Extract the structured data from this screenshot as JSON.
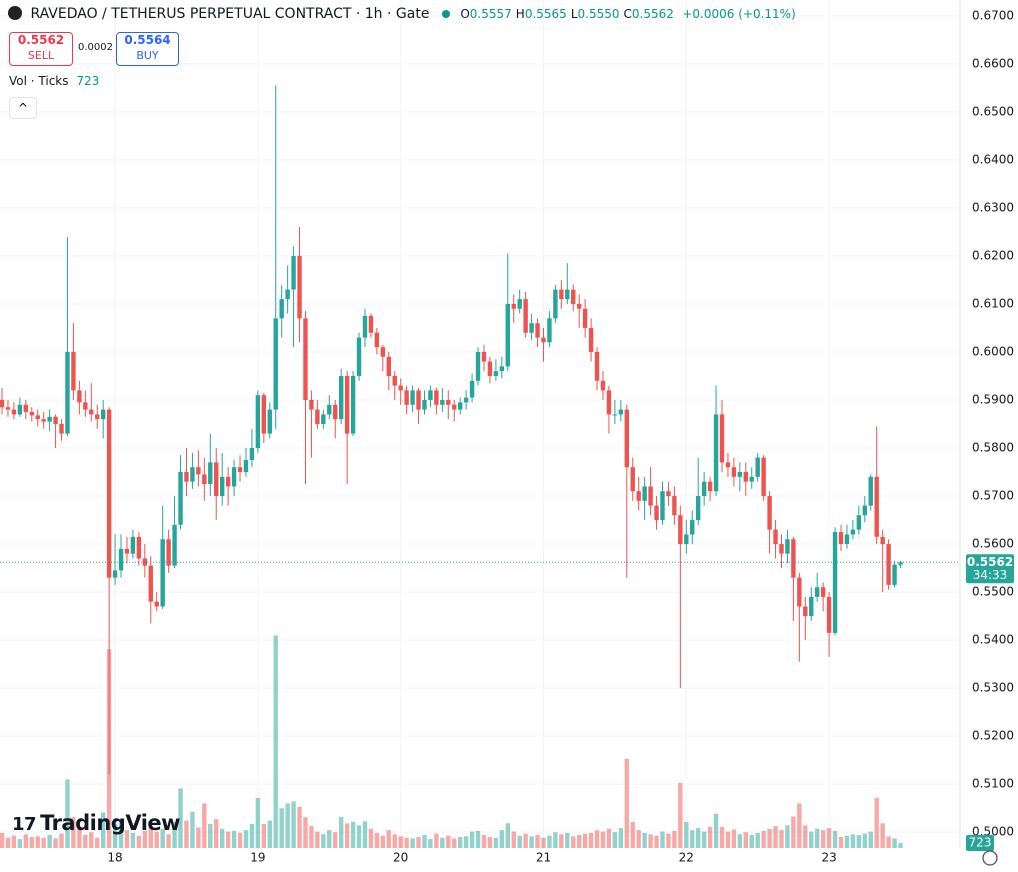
{
  "chart_data": {
    "type": "candlestick",
    "title": "RAVEDAO / TETHERUS PERPETUAL CONTRACT · 1h · Gate",
    "legend": [
      {
        "label": "O",
        "value": "0.5557"
      },
      {
        "label": "H",
        "value": "0.5565"
      },
      {
        "label": "L",
        "value": "0.5550"
      },
      {
        "label": "C",
        "value": "0.5562"
      }
    ],
    "change": "+0.0006 (+0.11%)",
    "volume_title": "Vol · Ticks",
    "colors": {
      "up": "#26a69a",
      "down": "#ef5350"
    },
    "ylim": [
      0.4967,
      0.6733
    ],
    "yticks": [
      {
        "value": 0.5,
        "label": "0.5000"
      },
      {
        "value": 0.51,
        "label": "0.5100"
      },
      {
        "value": 0.52,
        "label": "0.5200"
      },
      {
        "value": 0.53,
        "label": "0.5300"
      },
      {
        "value": 0.54,
        "label": "0.5400"
      },
      {
        "value": 0.55,
        "label": "0.5500"
      },
      {
        "value": 0.56,
        "label": "0.5600"
      },
      {
        "value": 0.57,
        "label": "0.5700"
      },
      {
        "value": 0.58,
        "label": "0.5800"
      },
      {
        "value": 0.59,
        "label": "0.5900"
      },
      {
        "value": 0.6,
        "label": "0.6000"
      },
      {
        "value": 0.61,
        "label": "0.6100"
      },
      {
        "value": 0.62,
        "label": "0.6200"
      },
      {
        "value": 0.63,
        "label": "0.6300"
      },
      {
        "value": 0.64,
        "label": "0.6400"
      },
      {
        "value": 0.65,
        "label": "0.6500"
      },
      {
        "value": 0.66,
        "label": "0.6600"
      },
      {
        "value": 0.67,
        "label": "0.6700"
      }
    ],
    "xlim": [
      -0.34,
      161
    ],
    "xticks": [
      {
        "value": 19,
        "label": "18"
      },
      {
        "value": 43,
        "label": "19"
      },
      {
        "value": 67,
        "label": "20"
      },
      {
        "value": 91,
        "label": "21"
      },
      {
        "value": 115,
        "label": "22"
      },
      {
        "value": 139,
        "label": "23"
      }
    ],
    "grid": true,
    "open": [
      0.59,
      0.5885,
      0.588,
      0.587,
      0.589,
      0.5875,
      0.5868,
      0.586,
      0.5855,
      0.5865,
      0.585,
      0.583,
      0.6,
      0.592,
      0.5895,
      0.588,
      0.587,
      0.586,
      0.588,
      0.553,
      0.5545,
      0.559,
      0.558,
      0.5615,
      0.557,
      0.5555,
      0.548,
      0.547,
      0.561,
      0.5555,
      0.564,
      0.575,
      0.573,
      0.576,
      0.5745,
      0.5725,
      0.577,
      0.57,
      0.574,
      0.572,
      0.576,
      0.575,
      0.5775,
      0.58,
      0.591,
      0.583,
      0.588,
      0.607,
      0.611,
      0.613,
      0.62,
      0.607,
      0.59,
      0.588,
      0.585,
      0.587,
      0.589,
      0.586,
      0.595,
      0.583,
      0.595,
      0.603,
      0.6075,
      0.604,
      0.601,
      0.599,
      0.595,
      0.593,
      0.592,
      0.589,
      0.592,
      0.588,
      0.59,
      0.592,
      0.589,
      0.59,
      0.589,
      0.588,
      0.5895,
      0.5905,
      0.594,
      0.6,
      0.598,
      0.595,
      0.596,
      0.597,
      0.61,
      0.609,
      0.611,
      0.604,
      0.606,
      0.603,
      0.602,
      0.607,
      0.613,
      0.611,
      0.613,
      0.61,
      0.609,
      0.605,
      0.6,
      0.594,
      0.592,
      0.587,
      0.587,
      0.588,
      0.576,
      0.571,
      0.569,
      0.572,
      0.568,
      0.565,
      0.571,
      0.57,
      0.566,
      0.56,
      0.562,
      0.565,
      0.57,
      0.573,
      0.571,
      0.587,
      0.577,
      0.576,
      0.574,
      0.575,
      0.573,
      0.574,
      0.578,
      0.57,
      0.563,
      0.56,
      0.558,
      0.561,
      0.553,
      0.547,
      0.545,
      0.549,
      0.551,
      0.549,
      0.5415,
      0.5625,
      0.56,
      0.562,
      0.563,
      0.566,
      0.568,
      0.574,
      0.5615,
      0.56,
      0.5515,
      0.5557
    ],
    "high": [
      0.5925,
      0.59,
      0.5895,
      0.5905,
      0.59,
      0.5885,
      0.588,
      0.5875,
      0.588,
      0.587,
      0.586,
      0.624,
      0.606,
      0.594,
      0.592,
      0.5935,
      0.589,
      0.59,
      0.5885,
      0.562,
      0.562,
      0.5615,
      0.563,
      0.5625,
      0.56,
      0.5575,
      0.55,
      0.568,
      0.563,
      0.57,
      0.5785,
      0.58,
      0.579,
      0.5795,
      0.578,
      0.583,
      0.58,
      0.579,
      0.576,
      0.5775,
      0.5785,
      0.58,
      0.584,
      0.592,
      0.5915,
      0.5895,
      0.6555,
      0.614,
      0.618,
      0.622,
      0.626,
      0.6085,
      0.592,
      0.59,
      0.588,
      0.591,
      0.59,
      0.5965,
      0.596,
      0.596,
      0.604,
      0.609,
      0.608,
      0.605,
      0.6015,
      0.6,
      0.596,
      0.5945,
      0.593,
      0.593,
      0.5925,
      0.592,
      0.593,
      0.5925,
      0.5925,
      0.592,
      0.59,
      0.5905,
      0.592,
      0.5955,
      0.601,
      0.6015,
      0.599,
      0.5985,
      0.599,
      0.6205,
      0.612,
      0.613,
      0.6125,
      0.608,
      0.607,
      0.605,
      0.6085,
      0.614,
      0.615,
      0.6185,
      0.614,
      0.612,
      0.611,
      0.607,
      0.601,
      0.596,
      0.593,
      0.59,
      0.59,
      0.589,
      0.578,
      0.574,
      0.574,
      0.576,
      0.57,
      0.573,
      0.573,
      0.572,
      0.568,
      0.565,
      0.567,
      0.578,
      0.575,
      0.574,
      0.593,
      0.59,
      0.579,
      0.578,
      0.577,
      0.577,
      0.576,
      0.579,
      0.5785,
      0.571,
      0.565,
      0.562,
      0.563,
      0.5615,
      0.554,
      0.549,
      0.551,
      0.554,
      0.552,
      0.55,
      0.5635,
      0.564,
      0.564,
      0.565,
      0.568,
      0.57,
      0.5745,
      0.5845,
      0.563,
      0.561,
      0.5565,
      0.5565
    ],
    "low": [
      0.587,
      0.5865,
      0.586,
      0.5865,
      0.586,
      0.5855,
      0.5845,
      0.584,
      0.5835,
      0.58,
      0.5815,
      0.5825,
      0.59,
      0.587,
      0.5865,
      0.5855,
      0.584,
      0.582,
      0.512,
      0.5515,
      0.553,
      0.556,
      0.557,
      0.5555,
      0.553,
      0.5435,
      0.546,
      0.5465,
      0.554,
      0.555,
      0.563,
      0.57,
      0.5715,
      0.572,
      0.569,
      0.57,
      0.565,
      0.568,
      0.568,
      0.57,
      0.573,
      0.574,
      0.576,
      0.579,
      0.581,
      0.582,
      0.584,
      0.603,
      0.608,
      0.601,
      0.602,
      0.5725,
      0.578,
      0.584,
      0.584,
      0.586,
      0.582,
      0.585,
      0.5725,
      0.5825,
      0.594,
      0.601,
      0.603,
      0.5995,
      0.596,
      0.592,
      0.59,
      0.589,
      0.587,
      0.5875,
      0.585,
      0.587,
      0.5885,
      0.587,
      0.5875,
      0.586,
      0.5855,
      0.587,
      0.588,
      0.5895,
      0.593,
      0.596,
      0.5935,
      0.594,
      0.5945,
      0.596,
      0.606,
      0.608,
      0.603,
      0.6025,
      0.601,
      0.598,
      0.601,
      0.606,
      0.609,
      0.61,
      0.6085,
      0.605,
      0.603,
      0.598,
      0.592,
      0.59,
      0.583,
      0.585,
      0.5855,
      0.553,
      0.569,
      0.567,
      0.565,
      0.566,
      0.563,
      0.564,
      0.568,
      0.564,
      0.53,
      0.558,
      0.56,
      0.564,
      0.568,
      0.569,
      0.57,
      0.575,
      0.574,
      0.572,
      0.571,
      0.57,
      0.5715,
      0.573,
      0.569,
      0.558,
      0.557,
      0.555,
      0.556,
      0.544,
      0.5355,
      0.54,
      0.544,
      0.548,
      0.546,
      0.5365,
      0.541,
      0.5585,
      0.559,
      0.561,
      0.562,
      0.5645,
      0.567,
      0.56,
      0.55,
      0.5505,
      0.551,
      0.555
    ],
    "close": [
      0.5885,
      0.588,
      0.587,
      0.589,
      0.5875,
      0.5868,
      0.586,
      0.5855,
      0.5865,
      0.585,
      0.583,
      0.6,
      0.592,
      0.5895,
      0.588,
      0.587,
      0.586,
      0.588,
      0.553,
      0.5545,
      0.559,
      0.558,
      0.5615,
      0.557,
      0.5555,
      0.548,
      0.547,
      0.561,
      0.5555,
      0.564,
      0.575,
      0.573,
      0.576,
      0.5745,
      0.5725,
      0.577,
      0.57,
      0.574,
      0.572,
      0.576,
      0.575,
      0.5775,
      0.58,
      0.591,
      0.583,
      0.588,
      0.607,
      0.611,
      0.613,
      0.62,
      0.607,
      0.59,
      0.588,
      0.585,
      0.587,
      0.589,
      0.586,
      0.595,
      0.583,
      0.595,
      0.603,
      0.6075,
      0.604,
      0.601,
      0.599,
      0.595,
      0.593,
      0.592,
      0.589,
      0.592,
      0.588,
      0.59,
      0.592,
      0.589,
      0.59,
      0.589,
      0.588,
      0.5895,
      0.5905,
      0.594,
      0.6,
      0.598,
      0.595,
      0.596,
      0.597,
      0.61,
      0.609,
      0.611,
      0.604,
      0.606,
      0.603,
      0.602,
      0.607,
      0.613,
      0.611,
      0.613,
      0.61,
      0.609,
      0.605,
      0.6,
      0.594,
      0.592,
      0.587,
      0.587,
      0.588,
      0.576,
      0.571,
      0.569,
      0.572,
      0.568,
      0.565,
      0.571,
      0.57,
      0.566,
      0.56,
      0.562,
      0.565,
      0.57,
      0.573,
      0.571,
      0.587,
      0.577,
      0.576,
      0.574,
      0.575,
      0.573,
      0.574,
      0.578,
      0.57,
      0.563,
      0.56,
      0.558,
      0.561,
      0.553,
      0.547,
      0.545,
      0.549,
      0.551,
      0.549,
      0.5415,
      0.5625,
      0.56,
      0.562,
      0.563,
      0.566,
      0.568,
      0.574,
      0.5615,
      0.56,
      0.5515,
      0.5557,
      0.5562
    ],
    "volume": {
      "axis": "y2",
      "values": [
        2200,
        1500,
        1800,
        1300,
        2000,
        1600,
        1700,
        1500,
        1900,
        1400,
        2100,
        10000,
        4500,
        2800,
        1900,
        2300,
        1500,
        5200,
        29000,
        3500,
        4200,
        2600,
        2200,
        1800,
        2500,
        3000,
        2400,
        2800,
        2000,
        3800,
        8700,
        4000,
        5300,
        3000,
        6500,
        3500,
        4200,
        2800,
        2400,
        2500,
        2200,
        2600,
        3500,
        7300,
        3500,
        4000,
        31000,
        5800,
        6500,
        6800,
        6000,
        4500,
        3200,
        2400,
        2000,
        2600,
        2300,
        4500,
        3600,
        3800,
        3300,
        3900,
        2800,
        2200,
        1800,
        2600,
        2000,
        1700,
        1500,
        1400,
        1600,
        1900,
        1300,
        2100,
        1500,
        1800,
        1400,
        1600,
        1700,
        2400,
        2500,
        1900,
        1600,
        1500,
        2600,
        3600,
        2400,
        1800,
        2100,
        1700,
        1900,
        1500,
        1800,
        2300,
        2000,
        2200,
        1700,
        1900,
        2100,
        2200,
        2600,
        2400,
        2800,
        2300,
        2900,
        13000,
        3800,
        2600,
        2200,
        2000,
        1800,
        2400,
        2100,
        2500,
        9500,
        3800,
        2600,
        2900,
        2400,
        3100,
        5000,
        3100,
        2400,
        2700,
        2000,
        2300,
        1900,
        2200,
        2500,
        2800,
        3200,
        2600,
        3300,
        4600,
        6500,
        3300,
        2400,
        2800,
        2600,
        2900,
        2500,
        1600,
        1800,
        2000,
        1900,
        2100,
        2400,
        7300,
        3600,
        1700,
        1400,
        723
      ]
    },
    "y2lim": [
      0,
      35000
    ],
    "last_price": {
      "value": 0.5562,
      "label": "0.5562"
    },
    "countdown": "34:33"
  },
  "trade": {
    "sell_price": "0.5562",
    "sell_label": "SELL",
    "spread": "0.0002",
    "buy_price": "0.5564",
    "buy_label": "BUY"
  },
  "brand": "TradingView"
}
